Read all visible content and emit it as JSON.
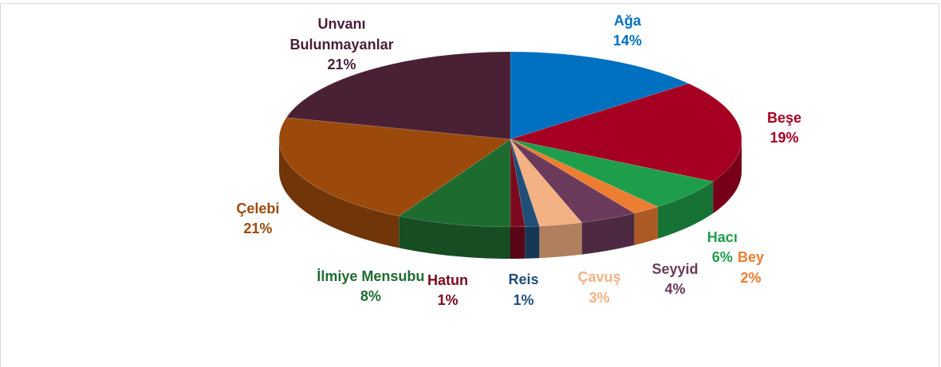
{
  "chart_data": {
    "type": "pie3d",
    "categories": [
      "Ağa",
      "Beşe",
      "Hacı",
      "Bey",
      "Seyyid",
      "Çavuş",
      "Reis",
      "Hatun",
      "İlmiye Mensubu",
      "Çelebi",
      "Unvanı Bulunmayanlar"
    ],
    "values": [
      14,
      19,
      6,
      2,
      4,
      3,
      1,
      1,
      8,
      21,
      21
    ],
    "value_labels": [
      "14%",
      "19%",
      "6%",
      "2%",
      "4%",
      "3%",
      "1%",
      "1%",
      "8%",
      "21%",
      "21%"
    ],
    "colors": [
      "#0070c0",
      "#a50021",
      "#1e9e4a",
      "#ed7d31",
      "#6b3a5a",
      "#f4b183",
      "#1f4e79",
      "#7b0a1e",
      "#1e6b30",
      "#9c4a0c",
      "#4a2035"
    ]
  }
}
